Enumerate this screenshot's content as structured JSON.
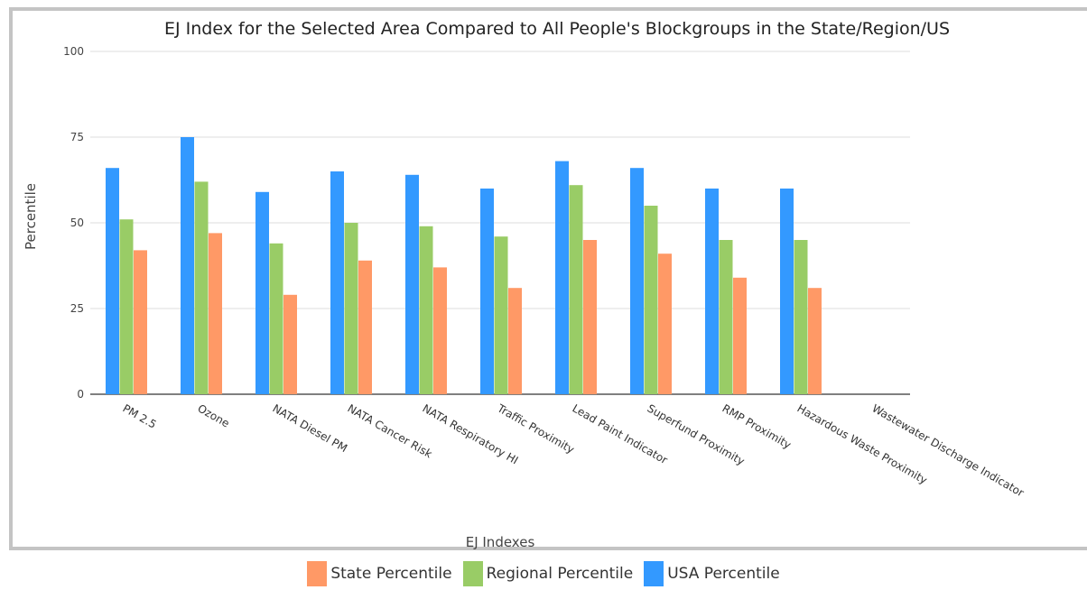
{
  "chart_data": {
    "type": "bar",
    "title": "EJ Index for the Selected Area Compared to All People's Blockgroups in the State/Region/US",
    "xlabel": "EJ Indexes",
    "ylabel": "Percentile",
    "ylim": [
      0,
      100
    ],
    "yticks": [
      "0",
      "25",
      "50",
      "75",
      "100"
    ],
    "grid": true,
    "legend_position": "bottom",
    "categories": [
      "PM 2.5",
      "Ozone",
      "NATA Diesel PM",
      "NATA Cancer Risk",
      "NATA Respiratory HI",
      "Traffic Proximity",
      "Lead Paint Indicator",
      "Superfund Proximity",
      "RMP Proximity",
      "Hazardous Waste Proximity",
      "Wastewater Discharge Indicator"
    ],
    "series": [
      {
        "name": "USA Percentile",
        "color": "#3399ff",
        "values": [
          66,
          75,
          59,
          65,
          64,
          60,
          68,
          66,
          60,
          60,
          null
        ]
      },
      {
        "name": "Regional Percentile",
        "color": "#99cc66",
        "values": [
          51,
          62,
          44,
          50,
          49,
          46,
          61,
          55,
          45,
          45,
          null
        ]
      },
      {
        "name": "State Percentile",
        "color": "#ff9966",
        "values": [
          42,
          47,
          29,
          39,
          37,
          31,
          45,
          41,
          34,
          31,
          null
        ]
      }
    ],
    "legend": [
      {
        "name": "State Percentile",
        "color": "#ff9966"
      },
      {
        "name": "Regional Percentile",
        "color": "#99cc66"
      },
      {
        "name": "USA Percentile",
        "color": "#3399ff"
      }
    ]
  }
}
